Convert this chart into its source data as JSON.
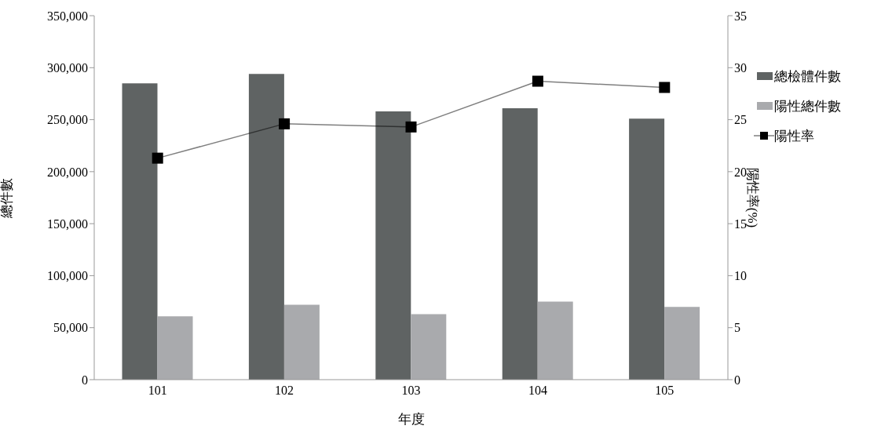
{
  "chart_data": {
    "type": "bar",
    "xlabel": "年度",
    "ylabel": "總件數",
    "y2label": "陽性率(%)",
    "categories": [
      "101",
      "102",
      "103",
      "104",
      "105"
    ],
    "series": [
      {
        "name": "總檢體件數",
        "color": "#5f6363",
        "values": [
          285000,
          294000,
          258000,
          261000,
          251000
        ]
      },
      {
        "name": "陽性總件數",
        "color": "#a9aaad",
        "values": [
          61000,
          72000,
          63000,
          75000,
          70000
        ]
      },
      {
        "name": "陽性率",
        "type": "line",
        "axis": "y2",
        "color": "#000000",
        "values": [
          21.3,
          24.6,
          24.3,
          28.7,
          28.1
        ]
      }
    ],
    "ylim": [
      0,
      350000
    ],
    "yticks": [
      0,
      {
        "value": 50000,
        "label": "50,000"
      },
      {
        "value": 100000,
        "label": "100,000"
      },
      {
        "value": 150000,
        "label": "150,000"
      },
      {
        "value": 200000,
        "label": "200,000"
      },
      {
        "value": 250000,
        "label": "250,000"
      },
      {
        "value": 300000,
        "label": "300,000"
      },
      {
        "value": 350000,
        "label": "350,000"
      }
    ],
    "y2lim": [
      0,
      35
    ],
    "y2ticks": [
      0,
      5,
      10,
      15,
      20,
      25,
      30,
      35
    ],
    "legend": "right",
    "marker": "square",
    "line_style": "solid"
  }
}
